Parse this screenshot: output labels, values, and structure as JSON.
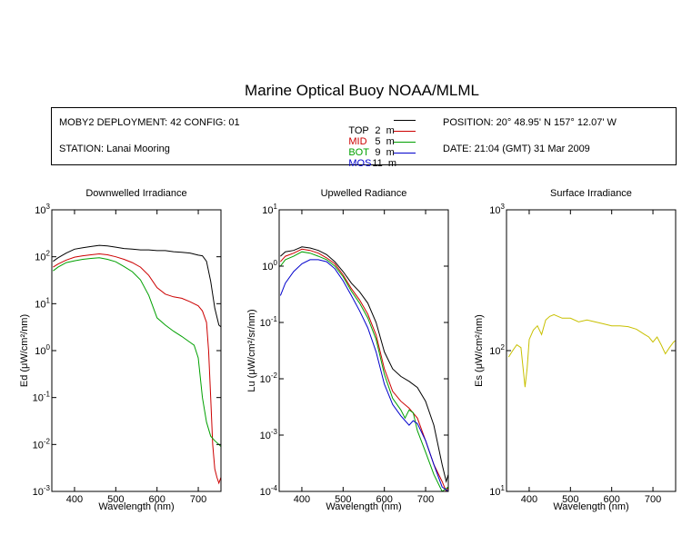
{
  "header": {
    "title": "Marine Optical Buoy NOAA/MLML",
    "deployment": "MOBY2 DEPLOYMENT: 42 CONFIG: 01",
    "station": "STATION: Lanai Mooring",
    "position": "POSITION: 20° 48.95' N   157° 12.07' W",
    "date": "DATE: 21:04 (GMT) 31 Mar 2009"
  },
  "legend": [
    {
      "name": "TOP",
      "depth": " 2  m",
      "color": "#000000"
    },
    {
      "name": "MID",
      "depth": " 5  m",
      "color": "#cc0000"
    },
    {
      "name": "BOT",
      "depth": " 9  m",
      "color": "#00a000"
    },
    {
      "name": "MOS",
      "depth": "11  m",
      "color": "#0000cc"
    }
  ],
  "chart_data": [
    {
      "type": "line",
      "title": "Downwelled Irradiance",
      "xlabel": "Wavelength (nm)",
      "ylabel": "Ed  (μW/cm²/nm)",
      "y_scale": "log",
      "xlim": [
        345,
        755
      ],
      "ylim": [
        0.001,
        1000
      ],
      "xticks": [
        400,
        500,
        600,
        700
      ],
      "yticks": [
        {
          "e": 3
        },
        {
          "e": 2
        },
        {
          "e": 1
        },
        {
          "e": 0
        },
        {
          "e": -1
        },
        {
          "e": -2
        },
        {
          "e": -3
        }
      ],
      "series": [
        {
          "name": "TOP",
          "color": "#000000",
          "x": [
            348,
            360,
            380,
            400,
            420,
            440,
            460,
            480,
            500,
            520,
            540,
            560,
            580,
            600,
            620,
            640,
            660,
            680,
            700,
            710,
            720,
            730,
            740,
            750,
            755
          ],
          "y": [
            80,
            95,
            120,
            145,
            155,
            165,
            175,
            170,
            160,
            150,
            145,
            140,
            140,
            135,
            135,
            128,
            125,
            120,
            108,
            105,
            80,
            30,
            8,
            3.5,
            3.2
          ]
        },
        {
          "name": "MID",
          "color": "#cc0000",
          "x": [
            348,
            360,
            380,
            400,
            420,
            440,
            460,
            480,
            500,
            520,
            540,
            560,
            580,
            600,
            620,
            640,
            660,
            680,
            700,
            710,
            720,
            725,
            730,
            735,
            740,
            745,
            750,
            755
          ],
          "y": [
            60,
            70,
            85,
            98,
            105,
            110,
            115,
            110,
            100,
            88,
            75,
            60,
            40,
            22,
            16,
            14,
            13,
            11,
            9,
            7,
            4,
            1,
            0.1,
            0.01,
            0.003,
            0.002,
            0.0015,
            0.002
          ]
        },
        {
          "name": "BOT",
          "color": "#00a000",
          "x": [
            348,
            360,
            380,
            400,
            420,
            440,
            460,
            480,
            500,
            520,
            540,
            560,
            580,
            600,
            620,
            640,
            660,
            680,
            690,
            700,
            710,
            720,
            730,
            740,
            750,
            755
          ],
          "y": [
            50,
            60,
            75,
            82,
            88,
            92,
            95,
            88,
            78,
            62,
            48,
            32,
            15,
            5,
            3.5,
            2.6,
            2,
            1.5,
            1.3,
            0.7,
            0.1,
            0.03,
            0.015,
            0.012,
            0.01,
            0.009
          ]
        }
      ]
    },
    {
      "type": "line",
      "title": "Upwelled Radiance",
      "xlabel": "Wavelength (nm)",
      "ylabel": "Lu  (μW/cm²/sr/nm)",
      "y_scale": "log",
      "xlim": [
        345,
        755
      ],
      "ylim": [
        0.0001,
        10
      ],
      "xticks": [
        400,
        500,
        600,
        700
      ],
      "yticks": [
        {
          "e": 1
        },
        {
          "e": 0
        },
        {
          "e": -1
        },
        {
          "e": -2
        },
        {
          "e": -3
        },
        {
          "e": -4
        }
      ],
      "series": [
        {
          "name": "TOP",
          "color": "#000000",
          "x": [
            348,
            360,
            380,
            400,
            420,
            440,
            460,
            480,
            500,
            520,
            540,
            560,
            580,
            600,
            620,
            640,
            660,
            680,
            700,
            720,
            740,
            750,
            755
          ],
          "y": [
            1.5,
            1.8,
            1.9,
            2.2,
            2.1,
            1.9,
            1.6,
            1.2,
            0.8,
            0.5,
            0.35,
            0.22,
            0.1,
            0.03,
            0.015,
            0.011,
            0.009,
            0.007,
            0.004,
            0.0015,
            0.0003,
            0.00015,
            0.0002
          ]
        },
        {
          "name": "MID",
          "color": "#cc0000",
          "x": [
            348,
            360,
            380,
            400,
            420,
            440,
            460,
            480,
            500,
            520,
            540,
            560,
            580,
            600,
            620,
            640,
            660,
            680,
            700,
            720,
            740,
            750,
            755
          ],
          "y": [
            1.2,
            1.5,
            1.7,
            2.0,
            1.9,
            1.7,
            1.4,
            1.1,
            0.7,
            0.4,
            0.25,
            0.14,
            0.06,
            0.015,
            0.006,
            0.004,
            0.003,
            0.002,
            0.0008,
            0.0003,
            0.00015,
            0.0001,
            0.00012
          ]
        },
        {
          "name": "BOT",
          "color": "#00a000",
          "x": [
            348,
            360,
            380,
            400,
            420,
            440,
            460,
            480,
            500,
            520,
            540,
            560,
            580,
            600,
            620,
            640,
            650,
            660,
            670,
            680,
            700,
            720,
            740,
            755
          ],
          "y": [
            1.0,
            1.3,
            1.5,
            1.8,
            1.7,
            1.5,
            1.3,
            1.0,
            0.65,
            0.36,
            0.22,
            0.12,
            0.05,
            0.012,
            0.0045,
            0.0028,
            0.002,
            0.0028,
            0.0025,
            0.0012,
            0.0005,
            0.0002,
            0.0001,
            0.00012
          ]
        },
        {
          "name": "MOS",
          "color": "#0000cc",
          "x": [
            348,
            360,
            380,
            400,
            420,
            440,
            460,
            480,
            500,
            520,
            540,
            560,
            580,
            600,
            620,
            640,
            660,
            670,
            680,
            700,
            720,
            740,
            755
          ],
          "y": [
            0.3,
            0.5,
            0.8,
            1.1,
            1.3,
            1.3,
            1.2,
            0.9,
            0.55,
            0.3,
            0.16,
            0.08,
            0.03,
            0.008,
            0.0035,
            0.0022,
            0.0015,
            0.0018,
            0.0016,
            0.0008,
            0.0003,
            0.00012,
            0.0001
          ]
        }
      ]
    },
    {
      "type": "line",
      "title": "Surface Irradiance",
      "xlabel": "Wavelength (nm)",
      "ylabel": "Es  (μW/cm²/nm)",
      "y_scale": "log",
      "xlim": [
        345,
        755
      ],
      "ylim": [
        10,
        1000
      ],
      "xticks": [
        400,
        500,
        600,
        700
      ],
      "yticks": [
        {
          "e": 3
        },
        {
          "e": 2
        },
        {
          "e": 1
        }
      ],
      "series": [
        {
          "name": "Es",
          "color": "#c8c000",
          "x": [
            350,
            360,
            370,
            380,
            390,
            395,
            400,
            410,
            420,
            430,
            440,
            450,
            460,
            480,
            500,
            520,
            540,
            560,
            580,
            600,
            620,
            640,
            660,
            680,
            690,
            700,
            710,
            720,
            730,
            740,
            750,
            755
          ],
          "y": [
            90,
            100,
            110,
            105,
            55,
            75,
            120,
            140,
            150,
            130,
            165,
            175,
            180,
            170,
            170,
            160,
            165,
            160,
            155,
            150,
            150,
            148,
            142,
            130,
            125,
            115,
            125,
            110,
            95,
            105,
            115,
            118
          ]
        }
      ]
    }
  ]
}
